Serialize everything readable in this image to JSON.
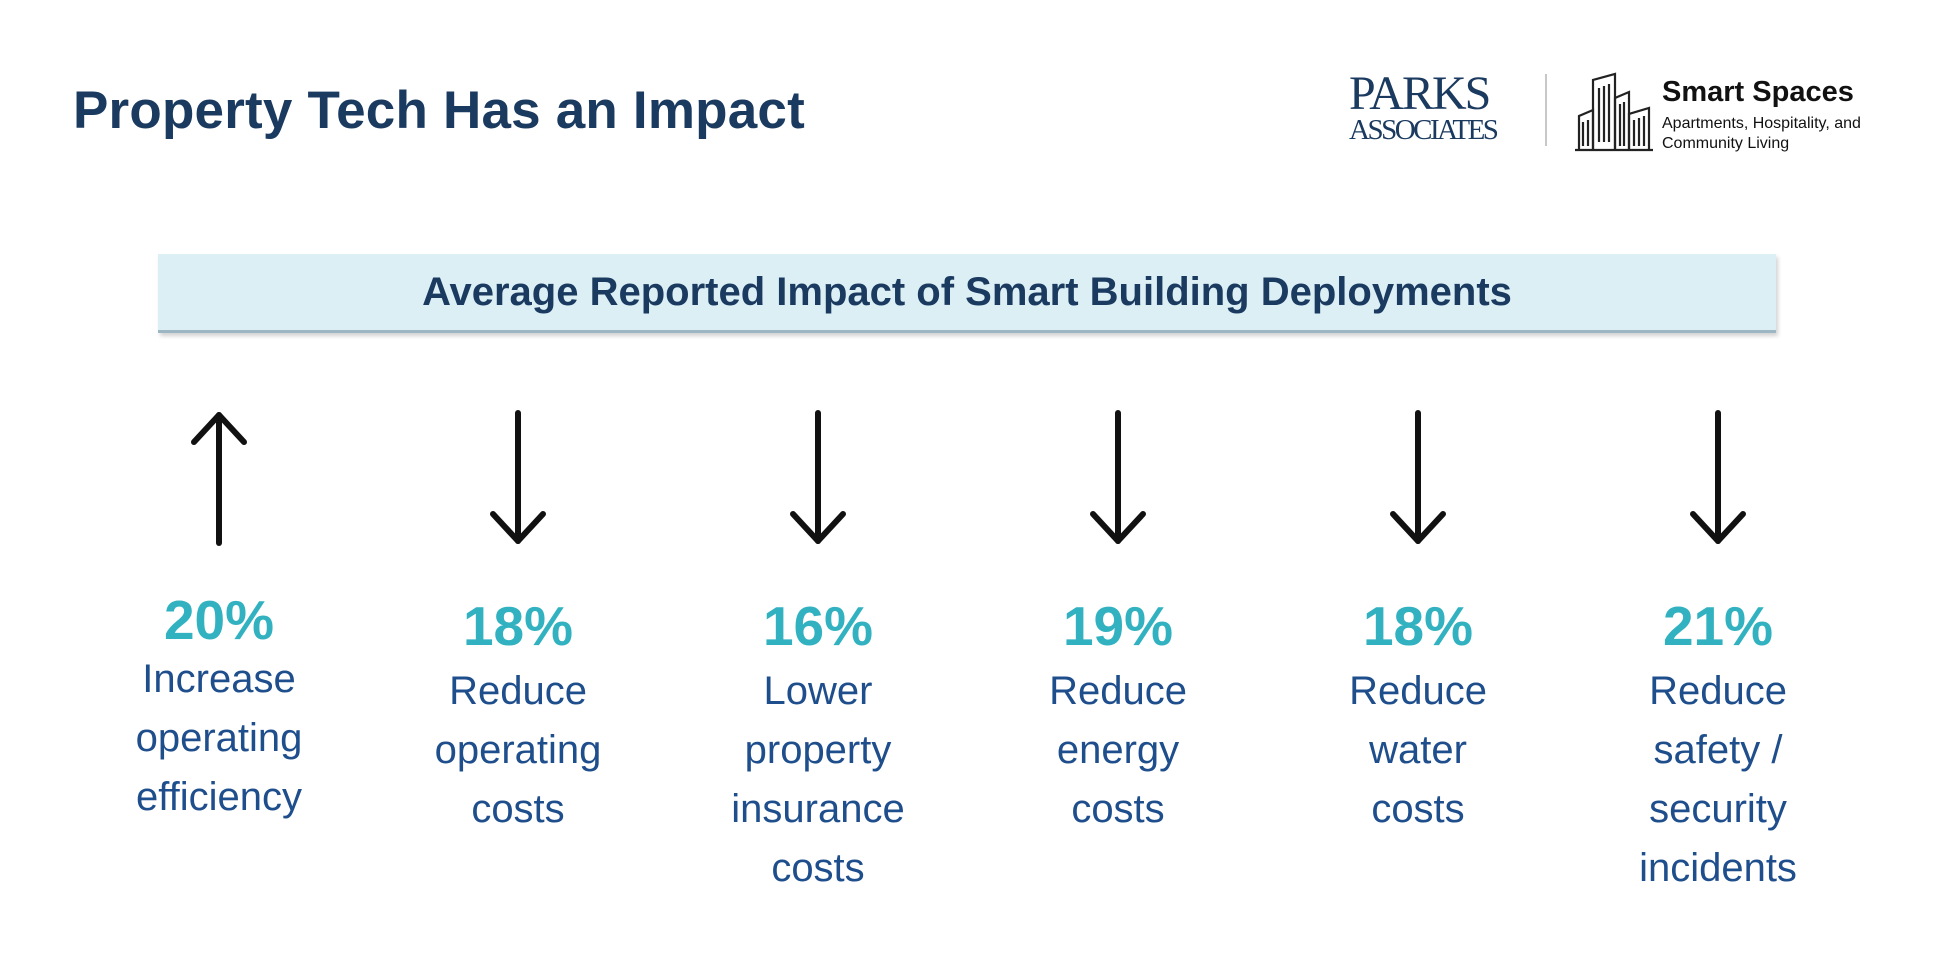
{
  "header": {
    "title": "Property Tech Has an Impact"
  },
  "logos": {
    "parks": {
      "line1": "PARKS",
      "line2": "ASSOCIATES"
    },
    "smart_spaces": {
      "title": "Smart Spaces",
      "subtitle_line1": "Apartments, Hospitality, and",
      "subtitle_line2": "Community Living"
    }
  },
  "banner": {
    "title": "Average Reported Impact of Smart Building Deployments"
  },
  "stats": [
    {
      "direction": "up",
      "icon": "arrow-up-icon",
      "percent": "20%",
      "label": [
        "Increase",
        "operating",
        "efficiency"
      ]
    },
    {
      "direction": "down",
      "icon": "arrow-down-icon",
      "percent": "18%",
      "label": [
        "Reduce",
        "operating",
        "costs"
      ]
    },
    {
      "direction": "down",
      "icon": "arrow-down-icon",
      "percent": "16%",
      "label": [
        "Lower",
        "property",
        "insurance",
        "costs"
      ]
    },
    {
      "direction": "down",
      "icon": "arrow-down-icon",
      "percent": "19%",
      "label": [
        "Reduce",
        "energy",
        "costs"
      ]
    },
    {
      "direction": "down",
      "icon": "arrow-down-icon",
      "percent": "18%",
      "label": [
        "Reduce",
        "water",
        "costs"
      ]
    },
    {
      "direction": "down",
      "icon": "arrow-down-icon",
      "percent": "21%",
      "label": [
        "Reduce",
        "safety /",
        "security",
        "incidents"
      ]
    }
  ],
  "colors": {
    "title": "#1b3a60",
    "percent": "#32b2c1",
    "label": "#1f4e8c",
    "banner_bg": "#dbeff5"
  }
}
